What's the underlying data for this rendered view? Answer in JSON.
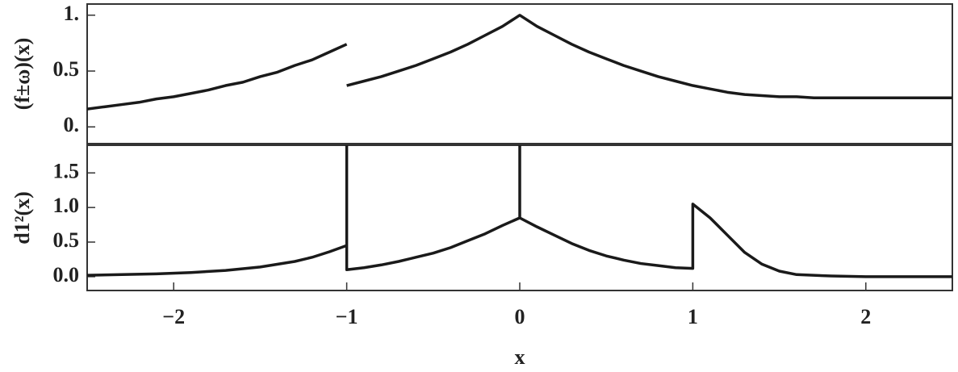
{
  "chart_data": [
    {
      "type": "line",
      "ylabel": "(f±ω)(x)",
      "x": [
        -2.5,
        -2.4,
        -2.3,
        -2.2,
        -2.1,
        -2.0,
        -1.9,
        -1.8,
        -1.7,
        -1.6,
        -1.5,
        -1.4,
        -1.3,
        -1.2,
        -1.1,
        -1.0,
        -1.0,
        -1.0,
        -0.9,
        -0.8,
        -0.7,
        -0.6,
        -0.5,
        -0.4,
        -0.3,
        -0.2,
        -0.1,
        0.0,
        0.1,
        0.2,
        0.3,
        0.4,
        0.5,
        0.6,
        0.7,
        0.8,
        0.9,
        1.0,
        1.1,
        1.2,
        1.3,
        1.4,
        1.5,
        1.6,
        1.7,
        1.8,
        1.9,
        2.0,
        2.1,
        2.2,
        2.3,
        2.4,
        2.5
      ],
      "series": [
        {
          "color": "#1a1a1a",
          "values": [
            0.16,
            0.18,
            0.2,
            0.22,
            0.25,
            0.27,
            0.3,
            0.33,
            0.37,
            0.4,
            0.45,
            0.49,
            0.55,
            0.6,
            0.67,
            0.74,
            null,
            0.37,
            0.41,
            0.45,
            0.5,
            0.55,
            0.61,
            0.67,
            0.74,
            0.82,
            0.9,
            1.0,
            0.9,
            0.82,
            0.74,
            0.67,
            0.61,
            0.55,
            0.5,
            0.45,
            0.41,
            0.37,
            0.34,
            0.31,
            0.29,
            0.28,
            0.27,
            0.27,
            0.26,
            0.26,
            0.26,
            0.26,
            0.26,
            0.26,
            0.26,
            0.26,
            0.26
          ]
        }
      ],
      "xlim": [
        -2.5,
        2.5
      ],
      "ylim": [
        -0.15,
        1.1
      ],
      "yticks": [
        {
          "value": 0,
          "label": "0."
        },
        0.5,
        {
          "value": 1,
          "label": "1."
        }
      ]
    },
    {
      "type": "line",
      "ylabel": "d1²(x)",
      "xlabel": "x",
      "x": [
        -2.5,
        -2.3,
        -2.1,
        -1.9,
        -1.7,
        -1.5,
        -1.3,
        -1.2,
        -1.1,
        -1.0,
        -1.0,
        -1.0,
        -0.9,
        -0.8,
        -0.7,
        -0.6,
        -0.5,
        -0.4,
        -0.3,
        -0.2,
        -0.1,
        0,
        0,
        0,
        0.1,
        0.2,
        0.3,
        0.4,
        0.5,
        0.6,
        0.7,
        0.8,
        0.9,
        1.0,
        1.0,
        1.1,
        1.2,
        1.3,
        1.4,
        1.5,
        1.6,
        1.8,
        2.0,
        2.2,
        2.5
      ],
      "series": [
        {
          "color": "#1a1a1a",
          "values": [
            0.02,
            0.03,
            0.04,
            0.06,
            0.09,
            0.14,
            0.22,
            0.28,
            0.36,
            0.45,
            1.9,
            0.1,
            0.13,
            0.17,
            0.22,
            0.28,
            0.34,
            0.42,
            0.52,
            0.62,
            0.74,
            0.85,
            1.9,
            0.85,
            0.72,
            0.6,
            0.48,
            0.38,
            0.3,
            0.24,
            0.19,
            0.16,
            0.13,
            0.12,
            1.05,
            0.85,
            0.6,
            0.35,
            0.18,
            0.08,
            0.03,
            0.01,
            0.0,
            0.0,
            0.0
          ]
        }
      ],
      "xlim": [
        -2.5,
        2.5
      ],
      "ylim": [
        -0.2,
        1.9
      ],
      "xticks": [
        {
          "value": -2,
          "label": "−2"
        },
        {
          "value": -1,
          "label": "−1"
        },
        0,
        1,
        2
      ],
      "yticks": [
        {
          "value": 0,
          "label": "0.0"
        },
        0.5,
        {
          "value": 1,
          "label": "1.0"
        },
        1.5
      ]
    }
  ]
}
